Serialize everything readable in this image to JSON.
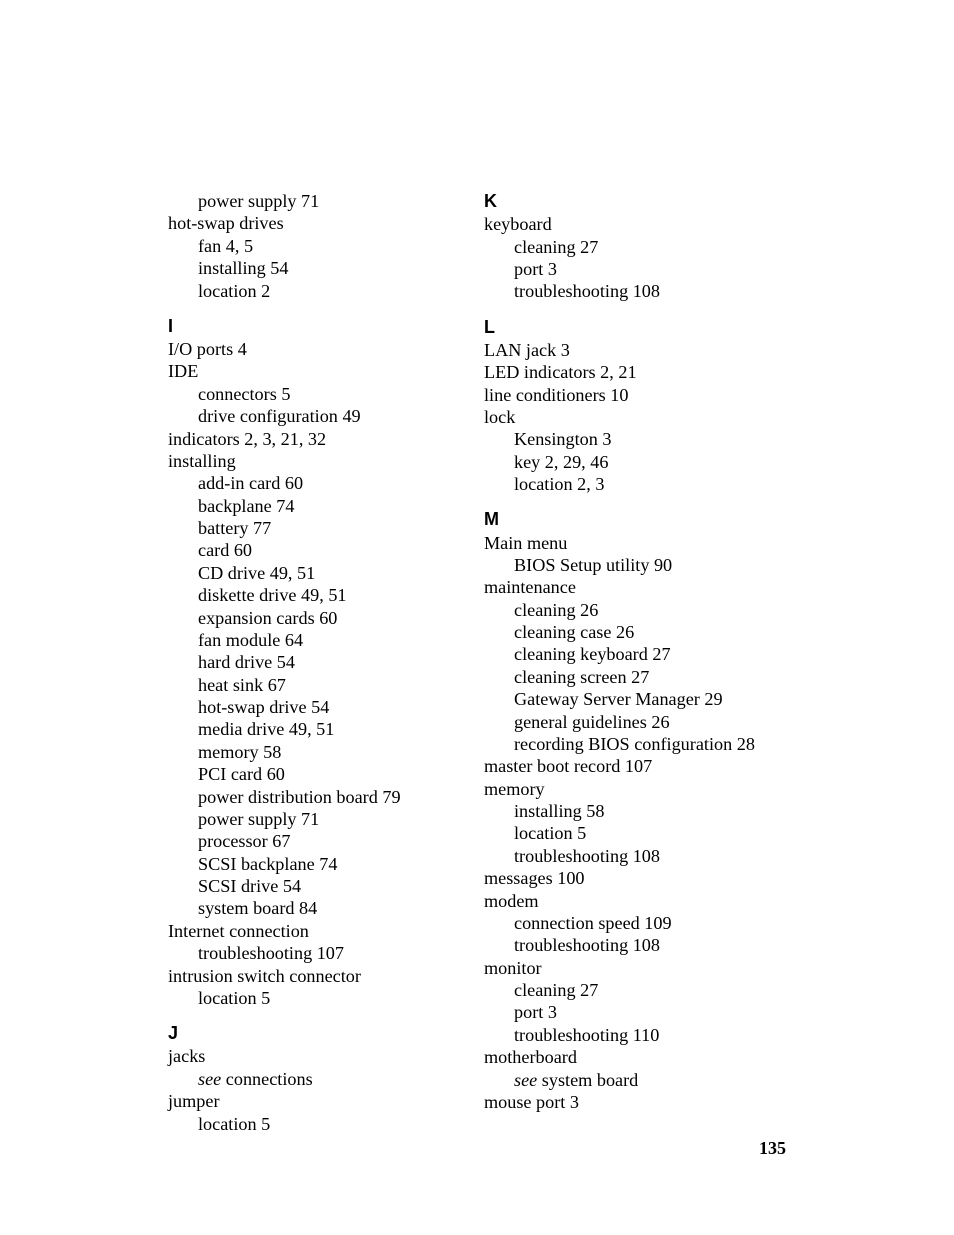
{
  "page_number": "135",
  "leftColumn": [
    {
      "type": "entry",
      "level": 1,
      "text": "power supply 71"
    },
    {
      "type": "entry",
      "level": 0,
      "text": "hot-swap drives"
    },
    {
      "type": "entry",
      "level": 1,
      "text": "fan 4, 5"
    },
    {
      "type": "entry",
      "level": 1,
      "text": "installing 54"
    },
    {
      "type": "entry",
      "level": 1,
      "text": "location 2"
    },
    {
      "type": "letter",
      "text": "I"
    },
    {
      "type": "entry",
      "level": 0,
      "text": "I/O ports 4"
    },
    {
      "type": "entry",
      "level": 0,
      "text": "IDE"
    },
    {
      "type": "entry",
      "level": 1,
      "text": "connectors 5"
    },
    {
      "type": "entry",
      "level": 1,
      "text": "drive configuration 49"
    },
    {
      "type": "entry",
      "level": 0,
      "text": "indicators 2, 3, 21, 32"
    },
    {
      "type": "entry",
      "level": 0,
      "text": "installing"
    },
    {
      "type": "entry",
      "level": 1,
      "text": "add-in card 60"
    },
    {
      "type": "entry",
      "level": 1,
      "text": "backplane 74"
    },
    {
      "type": "entry",
      "level": 1,
      "text": "battery 77"
    },
    {
      "type": "entry",
      "level": 1,
      "text": "card 60"
    },
    {
      "type": "entry",
      "level": 1,
      "text": "CD drive 49, 51"
    },
    {
      "type": "entry",
      "level": 1,
      "text": "diskette drive 49, 51"
    },
    {
      "type": "entry",
      "level": 1,
      "text": "expansion cards 60"
    },
    {
      "type": "entry",
      "level": 1,
      "text": "fan module 64"
    },
    {
      "type": "entry",
      "level": 1,
      "text": "hard drive 54"
    },
    {
      "type": "entry",
      "level": 1,
      "text": "heat sink 67"
    },
    {
      "type": "entry",
      "level": 1,
      "text": "hot-swap drive 54"
    },
    {
      "type": "entry",
      "level": 1,
      "text": "media drive 49, 51"
    },
    {
      "type": "entry",
      "level": 1,
      "text": "memory 58"
    },
    {
      "type": "entry",
      "level": 1,
      "text": "PCI card 60"
    },
    {
      "type": "entry",
      "level": 1,
      "text": "power distribution board 79"
    },
    {
      "type": "entry",
      "level": 1,
      "text": "power supply 71"
    },
    {
      "type": "entry",
      "level": 1,
      "text": "processor 67"
    },
    {
      "type": "entry",
      "level": 1,
      "text": "SCSI backplane 74"
    },
    {
      "type": "entry",
      "level": 1,
      "text": "SCSI drive 54"
    },
    {
      "type": "entry",
      "level": 1,
      "text": "system board 84"
    },
    {
      "type": "entry",
      "level": 0,
      "text": "Internet connection"
    },
    {
      "type": "entry",
      "level": 1,
      "text": "troubleshooting 107"
    },
    {
      "type": "entry",
      "level": 0,
      "text": "intrusion switch connector"
    },
    {
      "type": "entry",
      "level": 1,
      "text": "location 5"
    },
    {
      "type": "letter",
      "text": "J"
    },
    {
      "type": "entry",
      "level": 0,
      "text": "jacks"
    },
    {
      "type": "see",
      "level": 1,
      "seeText": "see",
      "rest": " connections"
    },
    {
      "type": "entry",
      "level": 0,
      "text": "jumper"
    },
    {
      "type": "entry",
      "level": 1,
      "text": "location 5"
    }
  ],
  "rightColumn": [
    {
      "type": "letter",
      "first": true,
      "text": "K"
    },
    {
      "type": "entry",
      "level": 0,
      "text": "keyboard"
    },
    {
      "type": "entry",
      "level": 1,
      "text": "cleaning 27"
    },
    {
      "type": "entry",
      "level": 1,
      "text": "port 3"
    },
    {
      "type": "entry",
      "level": 1,
      "text": "troubleshooting 108"
    },
    {
      "type": "letter",
      "text": "L"
    },
    {
      "type": "entry",
      "level": 0,
      "text": "LAN jack 3"
    },
    {
      "type": "entry",
      "level": 0,
      "text": "LED indicators 2, 21"
    },
    {
      "type": "entry",
      "level": 0,
      "text": "line conditioners 10"
    },
    {
      "type": "entry",
      "level": 0,
      "text": "lock"
    },
    {
      "type": "entry",
      "level": 1,
      "text": "Kensington 3"
    },
    {
      "type": "entry",
      "level": 1,
      "text": "key 2, 29, 46"
    },
    {
      "type": "entry",
      "level": 1,
      "text": "location 2, 3"
    },
    {
      "type": "letter",
      "text": "M"
    },
    {
      "type": "entry",
      "level": 0,
      "text": "Main menu"
    },
    {
      "type": "entry",
      "level": 1,
      "text": "BIOS Setup utility 90"
    },
    {
      "type": "entry",
      "level": 0,
      "text": "maintenance"
    },
    {
      "type": "entry",
      "level": 1,
      "text": "cleaning 26"
    },
    {
      "type": "entry",
      "level": 1,
      "text": "cleaning case 26"
    },
    {
      "type": "entry",
      "level": 1,
      "text": "cleaning keyboard 27"
    },
    {
      "type": "entry",
      "level": 1,
      "text": "cleaning screen 27"
    },
    {
      "type": "entry",
      "level": 1,
      "text": "Gateway Server Manager 29"
    },
    {
      "type": "entry",
      "level": 1,
      "text": "general guidelines 26"
    },
    {
      "type": "entry",
      "level": 1,
      "text": "recording BIOS configuration 28"
    },
    {
      "type": "entry",
      "level": 0,
      "text": "master boot record 107"
    },
    {
      "type": "entry",
      "level": 0,
      "text": "memory"
    },
    {
      "type": "entry",
      "level": 1,
      "text": "installing 58"
    },
    {
      "type": "entry",
      "level": 1,
      "text": "location 5"
    },
    {
      "type": "entry",
      "level": 1,
      "text": "troubleshooting 108"
    },
    {
      "type": "entry",
      "level": 0,
      "text": "messages 100"
    },
    {
      "type": "entry",
      "level": 0,
      "text": "modem"
    },
    {
      "type": "entry",
      "level": 1,
      "text": "connection speed 109"
    },
    {
      "type": "entry",
      "level": 1,
      "text": "troubleshooting 108"
    },
    {
      "type": "entry",
      "level": 0,
      "text": "monitor"
    },
    {
      "type": "entry",
      "level": 1,
      "text": "cleaning 27"
    },
    {
      "type": "entry",
      "level": 1,
      "text": "port 3"
    },
    {
      "type": "entry",
      "level": 1,
      "text": "troubleshooting 110"
    },
    {
      "type": "entry",
      "level": 0,
      "text": "motherboard"
    },
    {
      "type": "see",
      "level": 1,
      "seeText": "see",
      "rest": " system board"
    },
    {
      "type": "entry",
      "level": 0,
      "text": "mouse port 3"
    }
  ]
}
